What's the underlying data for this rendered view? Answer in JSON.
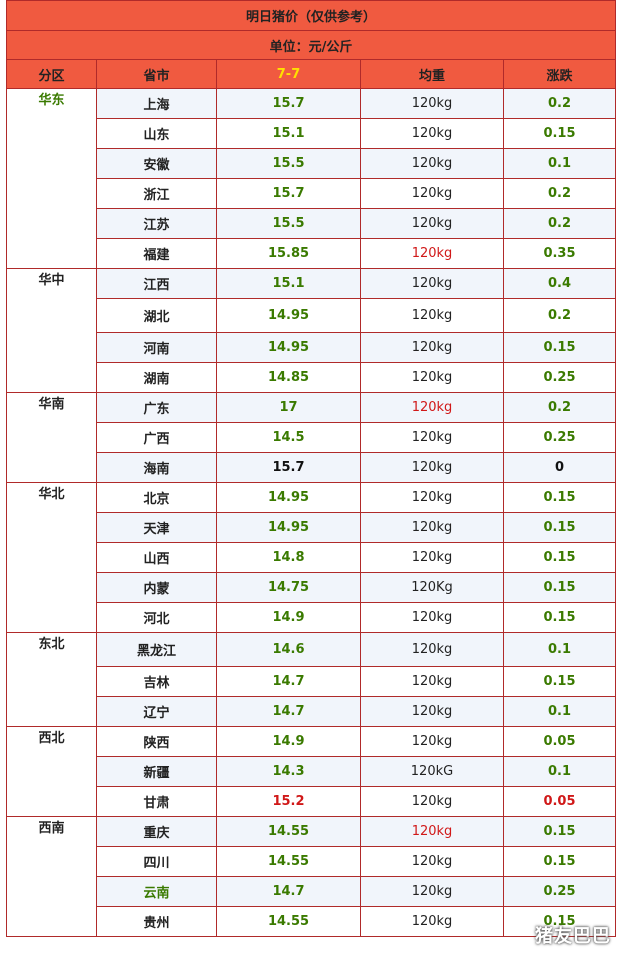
{
  "title": "明日猪价（仅供参考）",
  "unit": "单位：元/公斤",
  "headers": {
    "region": "分区",
    "city": "省市",
    "date": "7-7",
    "weight": "均重",
    "change": "涨跌"
  },
  "colors": {
    "header_bg": "#f05a40",
    "border": "#b02a2a",
    "date_text": "#ffe000",
    "green_text": "#3a7a00",
    "red_text": "#d01818"
  },
  "groups": [
    {
      "region": "华东",
      "region_color": "green",
      "rows": [
        {
          "city": "上海",
          "price": "15.7",
          "weight": "120kg",
          "change": "0.2"
        },
        {
          "city": "山东",
          "price": "15.1",
          "weight": "120kg",
          "change": "0.15"
        },
        {
          "city": "安徽",
          "price": "15.5",
          "weight": "120kg",
          "change": "0.1"
        },
        {
          "city": "浙江",
          "price": "15.7",
          "weight": "120kg",
          "change": "0.2"
        },
        {
          "city": "江苏",
          "price": "15.5",
          "weight": "120kg",
          "change": "0.2"
        },
        {
          "city": "福建",
          "price": "15.85",
          "weight": "120kg",
          "weight_color": "red",
          "change": "0.35"
        }
      ]
    },
    {
      "region": "华中",
      "rows": [
        {
          "city": "江西",
          "price": "15.1",
          "weight": "120kg",
          "change": "0.4"
        },
        {
          "city": "湖北",
          "price": "14.95",
          "weight": "120kg",
          "change": "0.2",
          "tall": true
        },
        {
          "city": "河南",
          "price": "14.95",
          "weight": "120kg",
          "change": "0.15"
        },
        {
          "city": "湖南",
          "price": "14.85",
          "weight": "120kg",
          "change": "0.25"
        }
      ]
    },
    {
      "region": "华南",
      "rows": [
        {
          "city": "广东",
          "price": "17",
          "weight": "120kg",
          "weight_color": "red",
          "change": "0.2"
        },
        {
          "city": "广西",
          "price": "14.5",
          "weight": "120kg",
          "change": "0.25"
        },
        {
          "city": "海南",
          "price": "15.7",
          "price_color": "black",
          "weight": "120kg",
          "change": "0",
          "change_color": "black"
        }
      ]
    },
    {
      "region": "华北",
      "rows": [
        {
          "city": "北京",
          "price": "14.95",
          "weight": "120kg",
          "change": "0.15"
        },
        {
          "city": "天津",
          "price": "14.95",
          "weight": "120kg",
          "change": "0.15"
        },
        {
          "city": "山西",
          "price": "14.8",
          "weight": "120kg",
          "change": "0.15"
        },
        {
          "city": "内蒙",
          "price": "14.75",
          "weight": "120Kg",
          "change": "0.15"
        },
        {
          "city": "河北",
          "price": "14.9",
          "weight": "120kg",
          "change": "0.15"
        }
      ]
    },
    {
      "region": "东北",
      "rows": [
        {
          "city": "黑龙江",
          "price": "14.6",
          "weight": "120kg",
          "change": "0.1",
          "tall": true
        },
        {
          "city": "吉林",
          "price": "14.7",
          "weight": "120kg",
          "change": "0.15"
        },
        {
          "city": "辽宁",
          "price": "14.7",
          "weight": "120kg",
          "change": "0.1"
        }
      ]
    },
    {
      "region": "西北",
      "rows": [
        {
          "city": "陕西",
          "price": "14.9",
          "weight": "120kg",
          "change": "0.05"
        },
        {
          "city": "新疆",
          "price": "14.3",
          "weight": "120kG",
          "change": "0.1"
        },
        {
          "city": "甘肃",
          "price": "15.2",
          "price_color": "red",
          "weight": "120kg",
          "change": "0.05",
          "change_color": "red"
        }
      ]
    },
    {
      "region": "西南",
      "rows": [
        {
          "city": "重庆",
          "price": "14.55",
          "weight": "120kg",
          "weight_color": "red",
          "change": "0.15"
        },
        {
          "city": "四川",
          "price": "14.55",
          "weight": "120kg",
          "change": "0.15"
        },
        {
          "city": "云南",
          "city_color": "green",
          "price": "14.7",
          "weight": "120kg",
          "change": "0.25"
        },
        {
          "city": "贵州",
          "price": "14.55",
          "weight": "120kg",
          "change": "0.15"
        }
      ]
    }
  ],
  "watermark": "猪友巴巴"
}
